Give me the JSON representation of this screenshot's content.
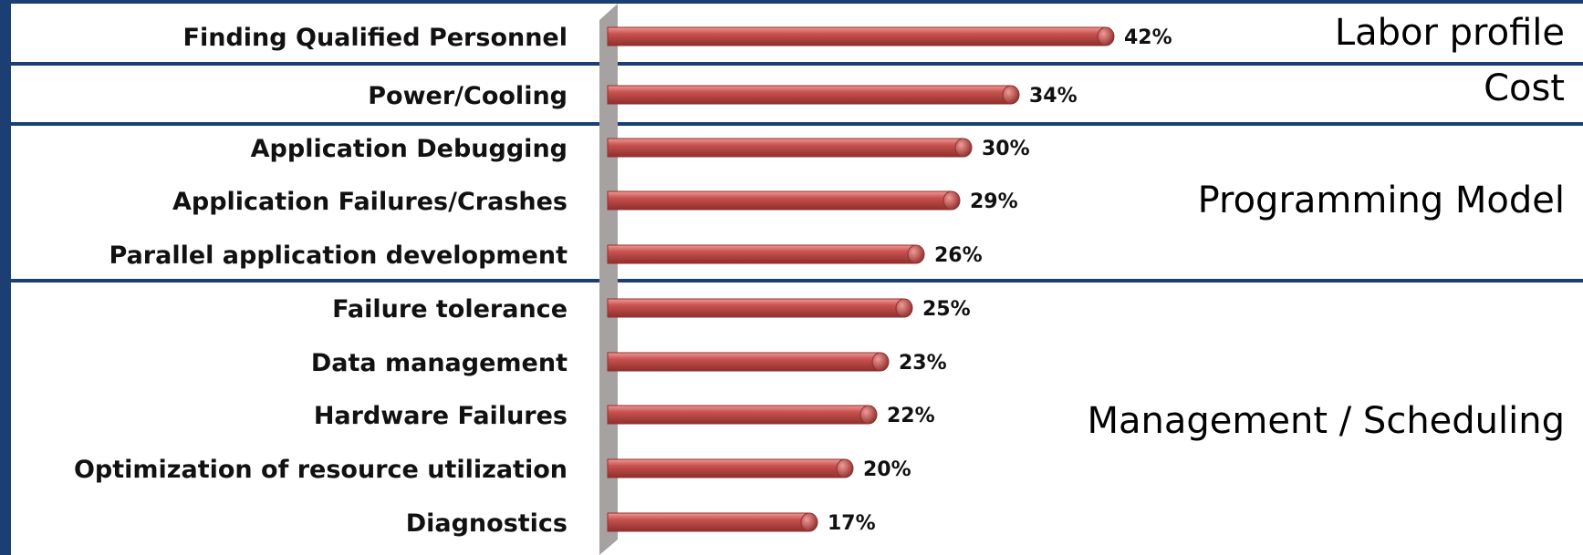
{
  "chart_data": {
    "type": "bar",
    "orientation": "horizontal",
    "categories": [
      "Finding Qualified Personnel",
      "Power/Cooling",
      "Application Debugging",
      "Application Failures/Crashes",
      "Parallel application development",
      "Failure tolerance",
      "Data management",
      "Hardware Failures",
      "Optimization of resource utilization",
      "Diagnostics"
    ],
    "values": [
      42,
      34,
      30,
      29,
      26,
      25,
      23,
      22,
      20,
      17
    ],
    "value_labels": [
      "42%",
      "34%",
      "30%",
      "29%",
      "26%",
      "25%",
      "23%",
      "22%",
      "20%",
      "17%"
    ],
    "unit": "%",
    "xlim": [
      0,
      100
    ],
    "grid": false,
    "title": "",
    "xlabel": "",
    "ylabel": "",
    "groups": [
      {
        "label": "Labor profile",
        "categories": [
          "Finding Qualified Personnel"
        ]
      },
      {
        "label": "Cost",
        "categories": [
          "Power/Cooling"
        ]
      },
      {
        "label": "Programming Model",
        "categories": [
          "Application Debugging",
          "Application Failures/Crashes",
          "Parallel application development"
        ]
      },
      {
        "label": "Management / Scheduling",
        "categories": [
          "Failure tolerance",
          "Data management",
          "Hardware Failures",
          "Optimization of resource utilization",
          "Diagnostics"
        ]
      }
    ]
  },
  "colors": {
    "background": "#1b3f73",
    "panel": "#ffffff",
    "bar": "#c9524f",
    "bar_highlight": "#f09a96",
    "bar_shadow": "#8f2f2d",
    "axis_wall": "#a7a2a2"
  }
}
